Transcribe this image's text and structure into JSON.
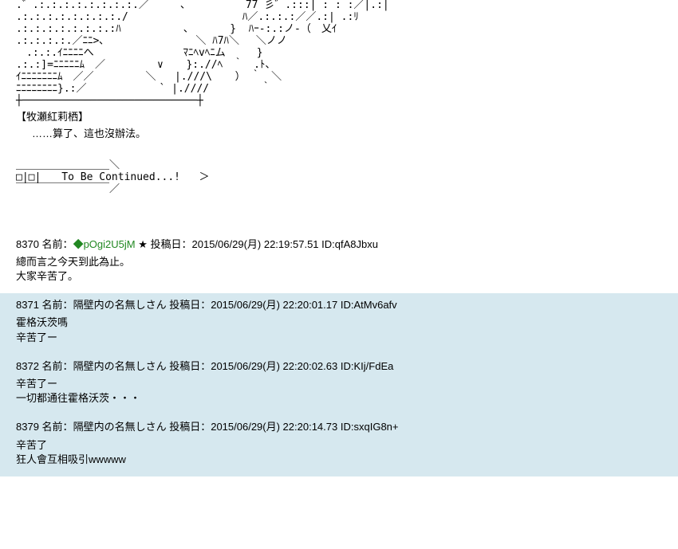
{
  "colors": {
    "background": "#ffffff",
    "text": "#000000",
    "trip_color": "#228822",
    "reply_bg": "#d6e8ef"
  },
  "typography": {
    "font_family": "MS PGothic",
    "font_size": 13,
    "line_height": 1.4,
    "ascii_line_height": 1.15
  },
  "ascii_art": ".゛.:.:.:.:.:.:.:.:.／　　　、　　 　 　 77 彡゛.:::| : : :／|.:|\n.:.:.:.:.:.:.:.:./　　　　　　　　　　　ﾊ／.:.:.:／／.:| .:ﾘ\n.:.:.:.:.:.:.:.:ﾊ　　　　　　、　　　　}  ﾊｰ-:.:ノ-（　乂ｲ\n.:.:.:.:.／ﾆﾆ>､　　　　        ＼ ﾊ7ﾊ＼　 ＼ノノ\n　.:.:.ｲﾆﾆﾆﾆへ　　　　　　　　 ﾏﾆﾍvﾍﾆム　　　}\n.:.:]=ﾆﾆﾆﾆﾆﾑ　／　　　　　∨　  }:.//ﾍ　｀　.ﾄ、\nｲﾆﾆﾆﾆﾆﾆﾆﾑ　／／　　　　　＼   |.///\\　  ）　｀　＼\nﾆﾆﾆﾆﾆﾆﾆﾆ}.:／　　　　　　　` |.////　　　　　｀\n┼────────────────────────────┼",
  "speaker_name": "【牧瀬紅莉栖】",
  "dialogue": "……算了、這也沒辦法。",
  "tbc_arrow": "＿＿＿＿＿＿＿＿＿＼\n□|□|　　To Be Continued...!   ＞\n￣￣￣￣￣￣￣￣￣／",
  "posts": [
    {
      "number": "8370",
      "name_label": "名前：",
      "name": "",
      "trip": "◆pOgi2U5jM",
      "star": "★",
      "date_label": "投稿日：",
      "date": "2015/06/29(月) 22:19:57.51",
      "id_label": "ID:",
      "id": "qfA8Jbxu",
      "body": "總而言之今天到此為止。\n大家辛苦了。",
      "is_reply": false
    },
    {
      "number": "8371",
      "name_label": "名前：",
      "name": "隔壁内の名無しさん",
      "trip": "",
      "star": "",
      "date_label": "投稿日：",
      "date": "2015/06/29(月) 22:20:01.17",
      "id_label": "ID:",
      "id": "AtMv6afv",
      "body": "霍格沃茨嗎\n辛苦了ー",
      "is_reply": true
    },
    {
      "number": "8372",
      "name_label": "名前：",
      "name": "隔壁内の名無しさん",
      "trip": "",
      "star": "",
      "date_label": "投稿日：",
      "date": "2015/06/29(月) 22:20:02.63",
      "id_label": "ID:",
      "id": "KIj/FdEa",
      "body": "辛苦了ー\n一切都通往霍格沃茨・・・",
      "is_reply": true
    },
    {
      "number": "8379",
      "name_label": "名前：",
      "name": "隔壁内の名無しさん",
      "trip": "",
      "star": "",
      "date_label": "投稿日：",
      "date": "2015/06/29(月) 22:20:14.73",
      "id_label": "ID:",
      "id": "sxqIG8n+",
      "body": "辛苦了\n狂人會互相吸引wwwww",
      "is_reply": true
    }
  ]
}
